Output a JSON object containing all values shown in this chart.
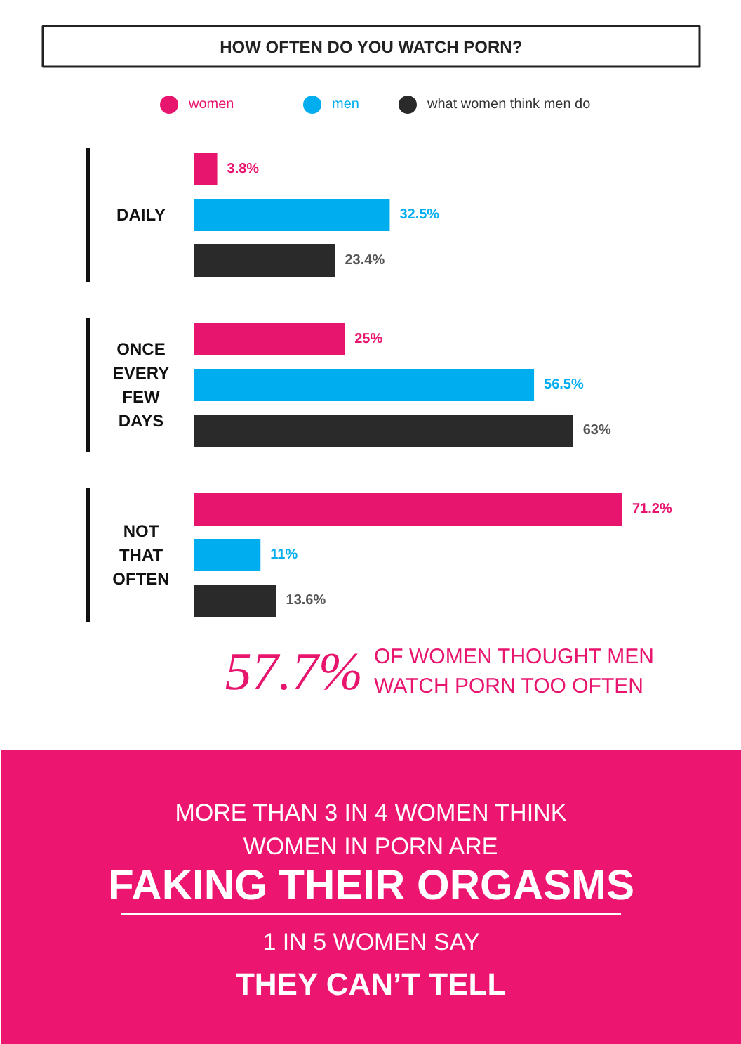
{
  "chart_data": {
    "type": "bar",
    "orientation": "horizontal",
    "title": "HOW OFTEN DO YOU WATCH PORN?",
    "categories": [
      "DAILY",
      "ONCE EVERY FEW DAYS",
      "NOT THAT OFTEN"
    ],
    "series": [
      {
        "name": "women",
        "color": "#e8156f",
        "values": [
          3.8,
          25,
          71.2
        ],
        "value_labels": [
          "3.8%",
          "25%",
          "71.2%"
        ]
      },
      {
        "name": "men",
        "color": "#00aeef",
        "values": [
          32.5,
          56.5,
          11
        ],
        "value_labels": [
          "32.5%",
          "56.5%",
          "11%"
        ]
      },
      {
        "name": "what women think men do",
        "color": "#2a2a2a",
        "values": [
          23.4,
          63,
          13.6
        ],
        "value_labels": [
          "23.4%",
          "63%",
          "13.6%"
        ]
      }
    ],
    "legend": "top",
    "annotations": [
      "57.7%",
      "OF WOMEN THOUGHT MEN",
      "WATCH PORN TOO OFTEN",
      "MORE THAN 3 IN 4 WOMEN THINK",
      "WOMEN IN PORN ARE",
      "FAKING THEIR ORGASMS",
      "1 IN 5 WOMEN SAY",
      "THEY CAN’T TELL"
    ]
  }
}
